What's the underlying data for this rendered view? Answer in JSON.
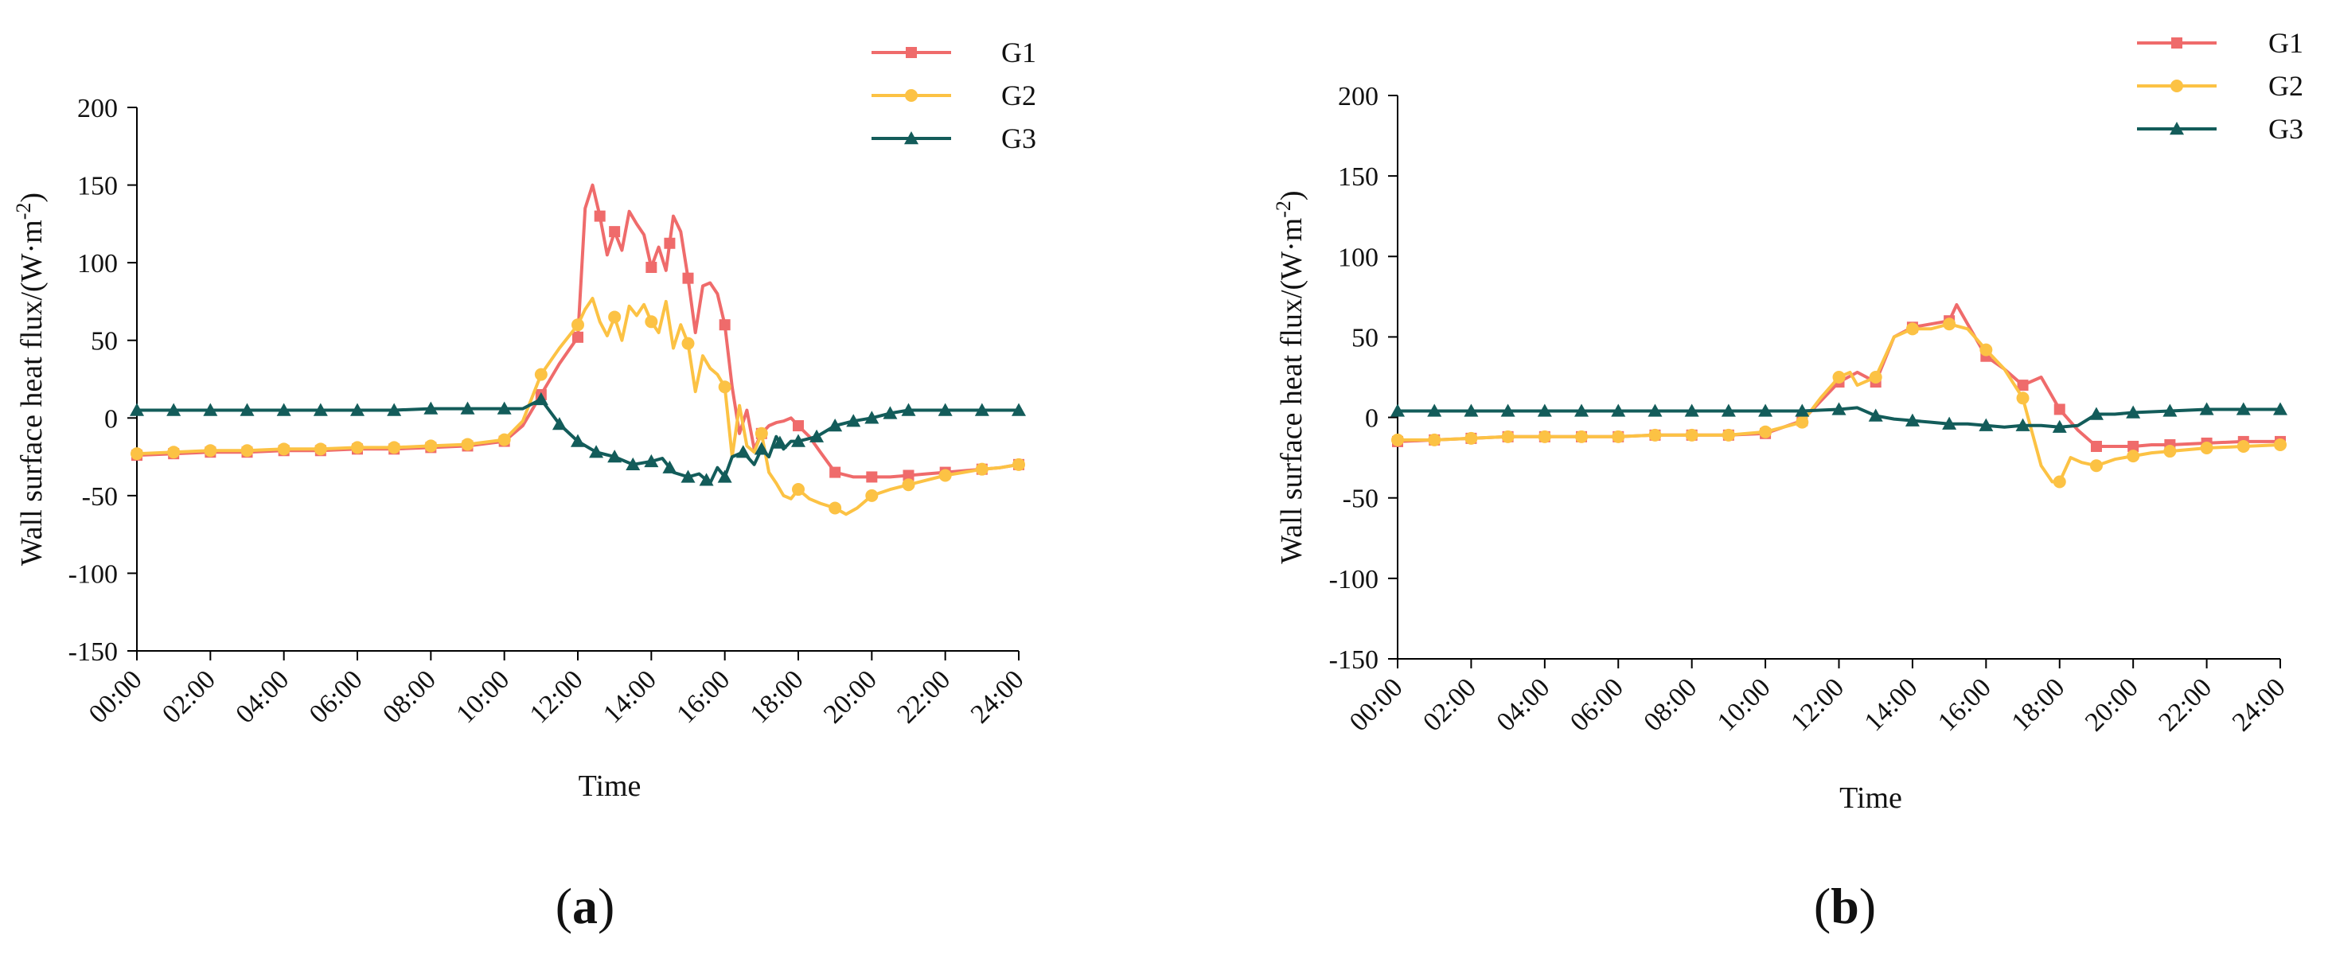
{
  "colors": {
    "G1": "#ef6b6b",
    "G2": "#fcc244",
    "G3": "#135c5a",
    "axis": "#000000"
  },
  "chart_data": [
    {
      "panel_label": "a",
      "type": "line",
      "xlabel": "Time",
      "ylabel": "Wall surface heat flux/(W·m",
      "ylabel_sup": "-2",
      "ylabel_close": ")",
      "ylim": [
        -150,
        200
      ],
      "yticks": [
        -150,
        -100,
        -50,
        0,
        50,
        100,
        150,
        200
      ],
      "yticklabels": [
        "-150",
        "-100",
        "-50",
        "0",
        "50",
        "100",
        "150",
        "200"
      ],
      "xlim": [
        0,
        24
      ],
      "xticks": [
        0,
        2,
        4,
        6,
        8,
        10,
        12,
        14,
        16,
        18,
        20,
        22,
        24
      ],
      "xticklabels": [
        "00:00",
        "02:00",
        "04:00",
        "06:00",
        "08:00",
        "10:00",
        "12:00",
        "14:00",
        "16:00",
        "18:00",
        "20:00",
        "22:00",
        "24:00"
      ],
      "legend": [
        "G1",
        "G2",
        "G3"
      ],
      "legend_position": "top-right",
      "series": [
        {
          "name": "G1",
          "marker": "square",
          "x": [
            0,
            1,
            2,
            3,
            4,
            5,
            6,
            7,
            8,
            9,
            10,
            10.5,
            11,
            11.5,
            12,
            12.2,
            12.4,
            12.6,
            12.8,
            13,
            13.2,
            13.4,
            13.6,
            13.8,
            14,
            14.2,
            14.4,
            14.6,
            14.8,
            15,
            15.2,
            15.4,
            15.6,
            15.8,
            16,
            16.2,
            16.4,
            16.6,
            16.8,
            17,
            17.2,
            17.4,
            17.6,
            17.8,
            18,
            18.3,
            18.6,
            19,
            19.5,
            20,
            20.5,
            21,
            21.5,
            22,
            22.5,
            23,
            23.5,
            24
          ],
          "y": [
            -24,
            -23,
            -22,
            -22,
            -21,
            -21,
            -20,
            -20,
            -19,
            -18,
            -15,
            -5,
            15,
            35,
            52,
            135,
            150,
            130,
            105,
            120,
            108,
            133,
            125,
            118,
            97,
            110,
            95,
            130,
            120,
            90,
            55,
            85,
            87,
            80,
            60,
            20,
            -10,
            5,
            -20,
            -10,
            -5,
            -3,
            -2,
            0,
            -5,
            -12,
            -22,
            -35,
            -38,
            -38,
            -38,
            -37,
            -36,
            -35,
            -34,
            -33,
            -32,
            -30
          ],
          "marker_x": [
            0,
            1,
            2,
            3,
            4,
            5,
            6,
            7,
            8,
            9,
            10,
            11,
            12,
            12.6,
            13,
            14,
            14.5,
            15,
            16,
            17,
            18,
            19,
            20,
            21,
            22,
            23,
            24
          ]
        },
        {
          "name": "G2",
          "marker": "circle",
          "x": [
            0,
            1,
            2,
            3,
            4,
            5,
            6,
            7,
            8,
            9,
            10,
            10.5,
            11,
            11.5,
            12,
            12.2,
            12.4,
            12.6,
            12.8,
            13,
            13.2,
            13.4,
            13.6,
            13.8,
            14,
            14.2,
            14.4,
            14.6,
            14.8,
            15,
            15.2,
            15.4,
            15.6,
            15.8,
            16,
            16.2,
            16.4,
            16.6,
            16.8,
            17,
            17.2,
            17.4,
            17.6,
            17.8,
            18,
            18.3,
            18.6,
            19,
            19.3,
            19.6,
            20,
            20.5,
            21,
            21.5,
            22,
            22.5,
            23,
            23.5,
            24
          ],
          "y": [
            -23,
            -22,
            -21,
            -21,
            -20,
            -20,
            -19,
            -19,
            -18,
            -17,
            -14,
            -2,
            28,
            45,
            60,
            70,
            77,
            62,
            53,
            65,
            50,
            72,
            66,
            73,
            62,
            55,
            75,
            45,
            60,
            48,
            17,
            40,
            32,
            28,
            20,
            -25,
            8,
            -18,
            -22,
            -10,
            -35,
            -42,
            -50,
            -52,
            -46,
            -52,
            -55,
            -58,
            -62,
            -58,
            -50,
            -46,
            -43,
            -40,
            -37,
            -35,
            -33,
            -32,
            -30
          ],
          "marker_x": [
            0,
            1,
            2,
            3,
            4,
            5,
            6,
            7,
            8,
            9,
            10,
            11,
            12,
            13,
            14,
            15,
            16,
            17,
            18,
            19,
            20,
            21,
            22,
            23,
            24
          ]
        },
        {
          "name": "G3",
          "marker": "triangle",
          "x": [
            0,
            1,
            2,
            3,
            4,
            5,
            6,
            7,
            8,
            9,
            10,
            10.5,
            11,
            11.5,
            12,
            12.5,
            13,
            13.5,
            14,
            14.3,
            14.6,
            15,
            15.3,
            15.6,
            15.8,
            16,
            16.2,
            16.5,
            16.8,
            17,
            17.2,
            17.4,
            17.6,
            17.8,
            18,
            18.5,
            19,
            19.5,
            20,
            20.5,
            21,
            21.5,
            22,
            22.5,
            23,
            23.5,
            24
          ],
          "y": [
            5,
            5,
            5,
            5,
            5,
            5,
            5,
            5,
            6,
            6,
            6,
            6,
            12,
            -4,
            -15,
            -22,
            -25,
            -30,
            -28,
            -26,
            -35,
            -38,
            -36,
            -42,
            -32,
            -38,
            -25,
            -22,
            -30,
            -20,
            -25,
            -12,
            -20,
            -15,
            -15,
            -12,
            -5,
            -2,
            0,
            3,
            5,
            5,
            5,
            5,
            5,
            5,
            5
          ],
          "marker_x": [
            0,
            1,
            2,
            3,
            4,
            5,
            6,
            7,
            8,
            9,
            10,
            11,
            11.5,
            12,
            12.5,
            13,
            13.5,
            14,
            14.5,
            15,
            15.5,
            16,
            16.5,
            17,
            17.5,
            18,
            18.5,
            19,
            19.5,
            20,
            20.5,
            21,
            22,
            23,
            24
          ]
        }
      ]
    },
    {
      "panel_label": "b",
      "type": "line",
      "xlabel": "Time",
      "ylabel": "Wall surface heat flux/(W·m",
      "ylabel_sup": "-2",
      "ylabel_close": ")",
      "ylim": [
        -150,
        200
      ],
      "yticks": [
        -150,
        -100,
        -50,
        0,
        50,
        100,
        150,
        200
      ],
      "yticklabels": [
        "-150",
        "-100",
        "-50",
        "0",
        "50",
        "100",
        "150",
        "200"
      ],
      "xlim": [
        0,
        24
      ],
      "xticks": [
        0,
        2,
        4,
        6,
        8,
        10,
        12,
        14,
        16,
        18,
        20,
        22,
        24
      ],
      "xticklabels": [
        "00:00",
        "02:00",
        "04:00",
        "06:00",
        "08:00",
        "10:00",
        "12:00",
        "14:00",
        "16:00",
        "18:00",
        "20:00",
        "22:00",
        "24:00"
      ],
      "legend": [
        "G1",
        "G2",
        "G3"
      ],
      "legend_position": "top-right",
      "series": [
        {
          "name": "G1",
          "marker": "square",
          "x": [
            0,
            1,
            2,
            3,
            4,
            5,
            6,
            7,
            8,
            9,
            10,
            11,
            11.5,
            12,
            12.5,
            13,
            13.5,
            14,
            14.5,
            15,
            15.2,
            15.5,
            16,
            16.5,
            17,
            17.5,
            18,
            18.5,
            19,
            19.5,
            20,
            20.5,
            21,
            22,
            23,
            24
          ],
          "y": [
            -15,
            -14,
            -13,
            -12,
            -12,
            -12,
            -12,
            -11,
            -11,
            -11,
            -10,
            -2,
            10,
            22,
            28,
            22,
            50,
            56,
            58,
            60,
            70,
            58,
            38,
            30,
            20,
            25,
            5,
            -8,
            -18,
            -18,
            -18,
            -17,
            -17,
            -16,
            -15,
            -15
          ],
          "marker_x": [
            0,
            1,
            2,
            3,
            4,
            5,
            6,
            7,
            8,
            9,
            10,
            11,
            12,
            13,
            14,
            15,
            16,
            17,
            18,
            19,
            20,
            21,
            22,
            23,
            24
          ]
        },
        {
          "name": "G2",
          "marker": "circle",
          "x": [
            0,
            1,
            2,
            3,
            4,
            5,
            6,
            7,
            8,
            9,
            10,
            11,
            11.5,
            12,
            12.3,
            12.5,
            13,
            13.5,
            14,
            14.5,
            15,
            15.5,
            16,
            16.5,
            17,
            17.5,
            17.8,
            18,
            18.3,
            18.6,
            19,
            19.5,
            20,
            20.5,
            21,
            22,
            23,
            24
          ],
          "y": [
            -14,
            -14,
            -13,
            -12,
            -12,
            -12,
            -12,
            -11,
            -11,
            -11,
            -9,
            -3,
            12,
            25,
            28,
            20,
            25,
            50,
            55,
            55,
            58,
            55,
            42,
            30,
            12,
            -30,
            -40,
            -40,
            -25,
            -28,
            -30,
            -26,
            -24,
            -22,
            -21,
            -19,
            -18,
            -17
          ],
          "marker_x": [
            0,
            1,
            2,
            3,
            4,
            5,
            6,
            7,
            8,
            9,
            10,
            11,
            12,
            13,
            14,
            15,
            16,
            17,
            18,
            19,
            20,
            21,
            22,
            23,
            24
          ]
        },
        {
          "name": "G3",
          "marker": "triangle",
          "x": [
            0,
            1,
            2,
            3,
            4,
            5,
            6,
            7,
            8,
            9,
            10,
            11,
            12,
            12.5,
            13,
            13.5,
            14,
            14.5,
            15,
            15.5,
            16,
            16.5,
            17,
            17.5,
            18,
            18.5,
            19,
            19.5,
            20,
            21,
            22,
            23,
            24
          ],
          "y": [
            4,
            4,
            4,
            4,
            4,
            4,
            4,
            4,
            4,
            4,
            4,
            4,
            5,
            6,
            1,
            -1,
            -2,
            -3,
            -4,
            -4,
            -5,
            -6,
            -5,
            -5,
            -6,
            -5,
            2,
            2,
            3,
            4,
            5,
            5,
            5
          ],
          "marker_x": [
            0,
            1,
            2,
            3,
            4,
            5,
            6,
            7,
            8,
            9,
            10,
            11,
            12,
            13,
            14,
            15,
            16,
            17,
            18,
            19,
            20,
            21,
            22,
            23,
            24
          ]
        }
      ]
    }
  ]
}
